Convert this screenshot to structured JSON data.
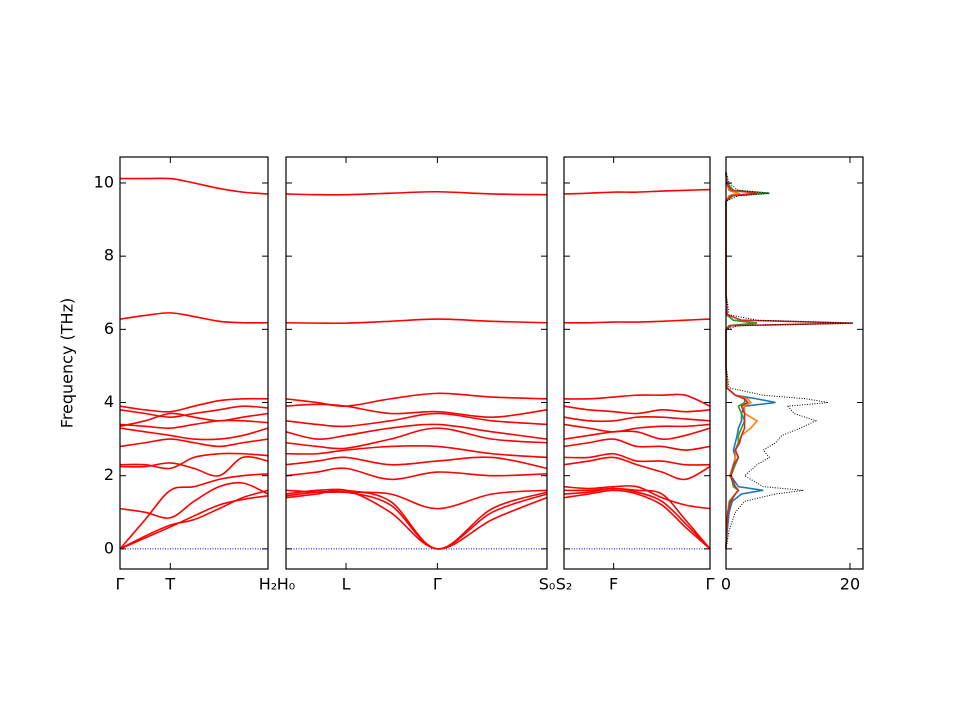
{
  "chart_data": {
    "type": "line",
    "ylabel": "Frequency (THz)",
    "ylim": [
      -0.55,
      10.71
    ],
    "yticks": [
      0,
      2,
      4,
      6,
      8,
      10
    ],
    "color": "#ff0000",
    "zero_line_color": "#0000ff",
    "panels": [
      {
        "xlim": [
          0,
          1
        ],
        "xticks": [
          {
            "value": 0,
            "label": "Γ"
          },
          {
            "value": 0.34,
            "label": "T"
          },
          {
            "value": 1,
            "label": "H₂"
          }
        ],
        "x": [
          0,
          0.17,
          0.34,
          0.5,
          0.67,
          0.83,
          1
        ],
        "bands": [
          [
            0,
            0.3,
            0.6,
            0.9,
            1.2,
            1.35,
            1.45
          ],
          [
            0,
            0.35,
            0.65,
            0.8,
            1.1,
            1.4,
            1.6
          ],
          [
            0,
            0.8,
            1.6,
            1.7,
            1.9,
            2.0,
            2.05
          ],
          [
            1.1,
            1.0,
            0.85,
            1.3,
            1.7,
            1.8,
            1.5
          ],
          [
            2.25,
            2.25,
            2.35,
            2.2,
            2.0,
            2.5,
            2.4
          ],
          [
            2.3,
            2.3,
            2.2,
            2.5,
            2.6,
            2.6,
            2.55
          ],
          [
            2.8,
            2.9,
            3.0,
            2.9,
            2.8,
            2.9,
            3.0
          ],
          [
            3.3,
            3.2,
            3.1,
            3.0,
            3.0,
            3.1,
            3.3
          ],
          [
            3.4,
            3.35,
            3.3,
            3.4,
            3.5,
            3.5,
            3.45
          ],
          [
            3.8,
            3.7,
            3.6,
            3.7,
            3.8,
            3.9,
            3.85
          ],
          [
            3.9,
            3.8,
            3.75,
            3.9,
            4.05,
            4.1,
            4.1
          ],
          [
            3.35,
            3.5,
            3.7,
            3.6,
            3.5,
            3.6,
            3.7
          ],
          [
            6.28,
            6.38,
            6.45,
            6.35,
            6.22,
            6.18,
            6.18
          ],
          [
            10.12,
            10.12,
            10.12,
            10.0,
            9.85,
            9.75,
            9.7
          ]
        ]
      },
      {
        "xlim": [
          0,
          1
        ],
        "xticks": [
          {
            "value": 0,
            "label": "H₀"
          },
          {
            "value": 0.23,
            "label": "L"
          },
          {
            "value": 0.58,
            "label": "Γ"
          },
          {
            "value": 1,
            "label": "S₀"
          }
        ],
        "x": [
          0,
          0.12,
          0.23,
          0.4,
          0.58,
          0.79,
          1
        ],
        "bands": [
          [
            1.4,
            1.5,
            1.6,
            1.0,
            0,
            0.8,
            1.4
          ],
          [
            1.45,
            1.55,
            1.55,
            1.2,
            0,
            1.0,
            1.5
          ],
          [
            1.5,
            1.6,
            1.6,
            1.3,
            0,
            1.1,
            1.55
          ],
          [
            1.6,
            1.55,
            1.55,
            1.5,
            1.1,
            1.5,
            1.6
          ],
          [
            2.0,
            2.1,
            2.2,
            1.9,
            2.1,
            2.0,
            2.05
          ],
          [
            2.3,
            2.4,
            2.5,
            2.3,
            2.4,
            2.5,
            2.2
          ],
          [
            2.6,
            2.6,
            2.7,
            2.8,
            2.8,
            2.6,
            2.5
          ],
          [
            2.9,
            2.8,
            2.75,
            3.0,
            3.3,
            3.0,
            2.9
          ],
          [
            3.2,
            3.0,
            3.1,
            3.3,
            3.4,
            3.2,
            3.0
          ],
          [
            3.5,
            3.4,
            3.35,
            3.5,
            3.7,
            3.5,
            3.4
          ],
          [
            3.9,
            3.95,
            3.9,
            3.7,
            3.75,
            3.6,
            3.8
          ],
          [
            4.1,
            4.0,
            3.9,
            4.1,
            4.25,
            4.15,
            4.1
          ],
          [
            6.18,
            6.17,
            6.17,
            6.22,
            6.28,
            6.22,
            6.18
          ],
          [
            9.7,
            9.68,
            9.68,
            9.72,
            9.76,
            9.7,
            9.68
          ]
        ]
      },
      {
        "xlim": [
          0,
          1
        ],
        "xticks": [
          {
            "value": 0,
            "label": "S₂"
          },
          {
            "value": 0.34,
            "label": "F"
          },
          {
            "value": 1,
            "label": "Γ"
          }
        ],
        "x": [
          0,
          0.17,
          0.34,
          0.5,
          0.67,
          0.83,
          1
        ],
        "bands": [
          [
            1.4,
            1.5,
            1.6,
            1.5,
            1.2,
            0.6,
            0
          ],
          [
            1.5,
            1.55,
            1.65,
            1.55,
            1.3,
            0.7,
            0
          ],
          [
            1.6,
            1.6,
            1.65,
            1.6,
            1.5,
            0.8,
            0
          ],
          [
            1.7,
            1.65,
            1.7,
            1.7,
            1.4,
            1.2,
            1.1
          ],
          [
            2.3,
            2.4,
            2.5,
            2.3,
            2.1,
            1.9,
            2.25
          ],
          [
            2.5,
            2.5,
            2.6,
            2.4,
            2.4,
            2.3,
            2.3
          ],
          [
            2.8,
            2.9,
            3.0,
            2.8,
            2.8,
            2.7,
            2.8
          ],
          [
            3.0,
            3.1,
            3.2,
            3.2,
            3.0,
            3.1,
            3.3
          ],
          [
            3.4,
            3.3,
            3.2,
            3.3,
            3.35,
            3.35,
            3.4
          ],
          [
            3.6,
            3.5,
            3.5,
            3.6,
            3.6,
            3.55,
            3.5
          ],
          [
            3.9,
            3.8,
            3.75,
            3.7,
            3.8,
            3.75,
            3.8
          ],
          [
            4.1,
            4.1,
            4.15,
            4.2,
            4.2,
            4.2,
            3.9
          ],
          [
            6.18,
            6.18,
            6.2,
            6.2,
            6.22,
            6.25,
            6.28
          ],
          [
            9.7,
            9.72,
            9.75,
            9.75,
            9.78,
            9.8,
            9.82
          ]
        ]
      }
    ],
    "dos": {
      "xlim": [
        0,
        22.1
      ],
      "xticks": [
        0,
        20
      ],
      "frequency": [
        0,
        0.5,
        1.0,
        1.3,
        1.5,
        1.6,
        1.7,
        2.0,
        2.3,
        2.5,
        2.7,
        2.9,
        3.1,
        3.3,
        3.5,
        3.7,
        3.9,
        4.0,
        4.1,
        4.2,
        4.4,
        5.0,
        6.0,
        6.1,
        6.17,
        6.25,
        6.4,
        7.0,
        9.5,
        9.65,
        9.72,
        9.8,
        10.0,
        10.3
      ],
      "total": {
        "color": "#000000",
        "values": [
          0,
          0.5,
          1.5,
          3,
          8,
          12.5,
          6,
          3,
          5,
          7,
          6,
          8,
          9,
          12,
          14.5,
          11,
          10,
          16.5,
          13,
          6,
          0.5,
          0,
          0,
          2,
          20.5,
          5,
          0.5,
          0,
          0,
          2,
          7,
          2,
          0.5,
          0
        ]
      },
      "partial": [
        {
          "color": "#1f77b4",
          "values": [
            0,
            0.2,
            0.5,
            1,
            2.5,
            6,
            2,
            0.8,
            1.2,
            1.5,
            1.2,
            1.5,
            1.8,
            2,
            2.5,
            2.5,
            3,
            8,
            5,
            1.5,
            0.2,
            0,
            0,
            0.5,
            5,
            1.2,
            0.1,
            0,
            0,
            0.5,
            2,
            0.5,
            0.1,
            0
          ]
        },
        {
          "color": "#ff7f0e",
          "values": [
            0,
            0.1,
            0.3,
            0.5,
            1.5,
            2,
            1.5,
            0.6,
            1.2,
            1.5,
            1.5,
            2,
            2.5,
            4,
            5,
            3,
            3,
            4,
            3.5,
            1.5,
            0.2,
            0,
            0,
            0.5,
            5,
            1.2,
            0.1,
            0,
            0,
            0.5,
            2,
            0.5,
            0.1,
            0
          ]
        },
        {
          "color": "#2ca02c",
          "values": [
            0,
            0.1,
            0.3,
            0.6,
            1.5,
            2,
            1.2,
            0.8,
            1.5,
            2,
            1.5,
            2,
            2,
            2.5,
            3,
            2.5,
            2,
            3,
            3,
            1.5,
            0.1,
            0,
            0,
            0.5,
            5,
            1.2,
            0.1,
            0,
            0,
            1.2,
            7,
            1.2,
            0.2,
            0
          ]
        },
        {
          "color": "#d62728",
          "values": [
            0,
            0.1,
            0.3,
            0.8,
            1.5,
            2,
            1.5,
            0.8,
            1.2,
            2,
            1.5,
            2.2,
            2.5,
            3,
            3,
            3,
            2.5,
            3.5,
            3,
            1.5,
            0.1,
            0,
            0,
            0.8,
            20.5,
            2.5,
            0.2,
            0,
            0,
            0.8,
            5,
            0.8,
            0.1,
            0
          ]
        }
      ]
    }
  }
}
